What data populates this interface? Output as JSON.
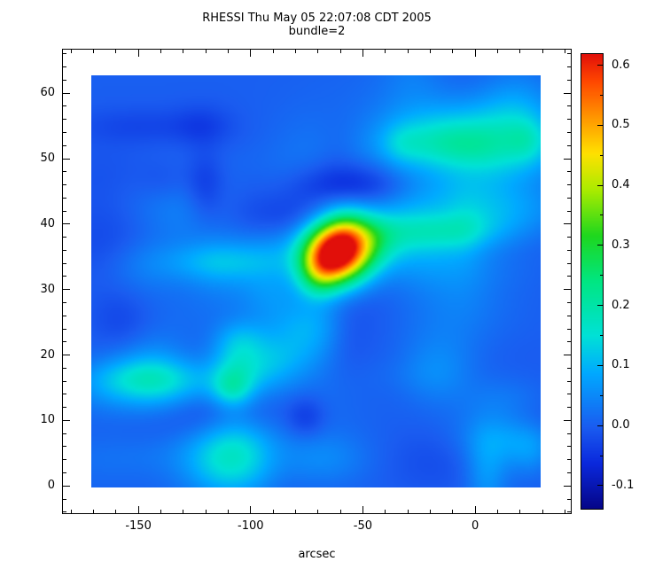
{
  "chart_data": {
    "type": "heatmap",
    "title": "RHESSI Thu May 05 22:07:08 CDT 2005",
    "subtitle": "bundle=2",
    "xlabel": "arcsec",
    "x_axis_range": [
      -184,
      43
    ],
    "y_axis_range": [
      -4.3,
      66.8
    ],
    "image_extent": {
      "x": [
        -171,
        29
      ],
      "y": [
        -0.3,
        62.7
      ]
    },
    "x_ticks": [
      {
        "v": -150,
        "label": "-150"
      },
      {
        "v": -100,
        "label": "-100"
      },
      {
        "v": -50,
        "label": "-50"
      },
      {
        "v": 0,
        "label": "0"
      }
    ],
    "x_minor_step": 10,
    "y_ticks": [
      {
        "v": 0,
        "label": "0"
      },
      {
        "v": 10,
        "label": "10"
      },
      {
        "v": 20,
        "label": "20"
      },
      {
        "v": 30,
        "label": "30"
      },
      {
        "v": 40,
        "label": "40"
      },
      {
        "v": 50,
        "label": "50"
      },
      {
        "v": 60,
        "label": "60"
      }
    ],
    "y_minor_step": 2,
    "colorbar": {
      "vmin": -0.14,
      "vmax": 0.62,
      "ticks": [
        {
          "v": 0.6,
          "label": "0.6"
        },
        {
          "v": 0.5,
          "label": "0.5"
        },
        {
          "v": 0.4,
          "label": "0.4"
        },
        {
          "v": 0.3,
          "label": "0.3"
        },
        {
          "v": 0.2,
          "label": "0.2"
        },
        {
          "v": 0.1,
          "label": "0.1"
        },
        {
          "v": 0.0,
          "label": "0.0"
        },
        {
          "v": -0.1,
          "label": "-0.1"
        }
      ],
      "minor_step": 0.05
    },
    "colormap_stops": [
      {
        "t": 0.0,
        "rgb": [
          5,
          5,
          135
        ]
      },
      {
        "t": 0.1,
        "rgb": [
          10,
          40,
          220
        ]
      },
      {
        "t": 0.18,
        "rgb": [
          26,
          92,
          240
        ]
      },
      {
        "t": 0.3,
        "rgb": [
          0,
          170,
          255
        ]
      },
      {
        "t": 0.38,
        "rgb": [
          0,
          225,
          215
        ]
      },
      {
        "t": 0.5,
        "rgb": [
          0,
          230,
          130
        ]
      },
      {
        "t": 0.6,
        "rgb": [
          30,
          215,
          30
        ]
      },
      {
        "t": 0.7,
        "rgb": [
          170,
          235,
          0
        ]
      },
      {
        "t": 0.78,
        "rgb": [
          255,
          225,
          0
        ]
      },
      {
        "t": 0.86,
        "rgb": [
          255,
          150,
          0
        ]
      },
      {
        "t": 0.94,
        "rgb": [
          255,
          70,
          0
        ]
      },
      {
        "t": 1.0,
        "rgb": [
          225,
          15,
          10
        ]
      }
    ],
    "background_level": 0.0,
    "sources": [
      {
        "x": -62,
        "y": 35.5,
        "sx": 10.0,
        "sy": 3.3,
        "amp": 0.66
      },
      {
        "x": -70,
        "y": 32.5,
        "sx": 6.5,
        "sy": 2.6,
        "amp": 0.16
      },
      {
        "x": -47,
        "y": 37.5,
        "sx": 9.0,
        "sy": 3.0,
        "amp": 0.1
      },
      {
        "x": -57,
        "y": 39.0,
        "sx": 7.0,
        "sy": 2.5,
        "amp": 0.08
      }
    ],
    "noise": {
      "seed": 7,
      "count": 110,
      "amp": [
        -0.05,
        0.075
      ],
      "sigma_x": [
        6,
        22
      ],
      "sigma_y": [
        1.8,
        4.5
      ]
    },
    "frame_color": "#000000",
    "background_color": "#ffffff"
  }
}
